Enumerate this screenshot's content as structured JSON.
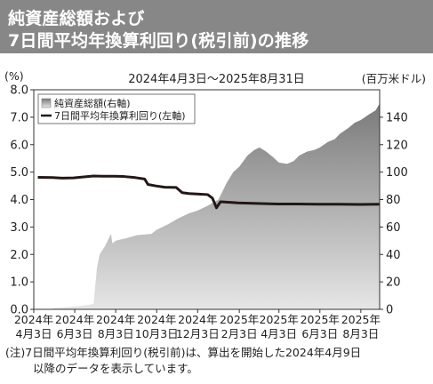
{
  "header": {
    "title_line1": "純資産総額および",
    "title_line2": "7日間平均年換算利回り(税引前)の推移"
  },
  "period_label": "2024年4月3日〜2025年8月31日",
  "left_unit": "(%)",
  "right_unit": "(百万米ドル)",
  "note": {
    "line1": "(注)7日間平均年換算利回り(税引前)は、算出を開始した2024年4月9日",
    "line2": "以降のデータを表示しています。"
  },
  "colors": {
    "title_bar": "#878787",
    "area_top": "#7a7a7a",
    "area_bottom": "#e6e6e6",
    "yield_line": "#231815"
  },
  "chart_data": {
    "type": "area",
    "x_ticks": [
      [
        "2024年",
        "4月3日"
      ],
      [
        "2024年",
        "6月3日"
      ],
      [
        "2024年",
        "8月3日"
      ],
      [
        "2024年",
        "10月3日"
      ],
      [
        "2024年",
        "12月3日"
      ],
      [
        "2025年",
        "2月3日"
      ],
      [
        "2025年",
        "4月3日"
      ],
      [
        "2025年",
        "6月3日"
      ],
      [
        "2025年",
        "8月3日"
      ]
    ],
    "y_left": {
      "ticks": [
        "0.0",
        "1.0",
        "2.0",
        "3.0",
        "4.0",
        "5.0",
        "6.0",
        "7.0",
        "8.0"
      ],
      "ylim": [
        0,
        8
      ]
    },
    "y_right": {
      "ticks": [
        "0",
        "20",
        "40",
        "60",
        "80",
        "100",
        "120",
        "140"
      ],
      "ylim": [
        0,
        160
      ]
    },
    "legend": {
      "position": "top-left",
      "items": [
        "純資産総額(右軸)",
        "7日間平均年換算利回り(左軸)"
      ]
    },
    "series": [
      {
        "name": "純資産総額(右軸)",
        "axis": "right",
        "style": "area",
        "points": [
          [
            "2024-04-03",
            0
          ],
          [
            "2024-04-30",
            0
          ],
          [
            "2024-05-03",
            1
          ],
          [
            "2024-05-20",
            1.5
          ],
          [
            "2024-06-03",
            2
          ],
          [
            "2024-06-20",
            3
          ],
          [
            "2024-07-01",
            4
          ],
          [
            "2024-07-06",
            30
          ],
          [
            "2024-07-10",
            40
          ],
          [
            "2024-07-18",
            46
          ],
          [
            "2024-07-24",
            52
          ],
          [
            "2024-07-27",
            55
          ],
          [
            "2024-07-29",
            48
          ],
          [
            "2024-08-03",
            50
          ],
          [
            "2024-08-20",
            52
          ],
          [
            "2024-09-03",
            54
          ],
          [
            "2024-09-25",
            55
          ],
          [
            "2024-10-03",
            58
          ],
          [
            "2024-10-20",
            62
          ],
          [
            "2024-11-03",
            66
          ],
          [
            "2024-11-20",
            70
          ],
          [
            "2024-12-03",
            72
          ],
          [
            "2024-12-20",
            76
          ],
          [
            "2025-01-03",
            80
          ],
          [
            "2025-01-15",
            92
          ],
          [
            "2025-01-25",
            100
          ],
          [
            "2025-02-03",
            104
          ],
          [
            "2025-02-15",
            112
          ],
          [
            "2025-02-25",
            116
          ],
          [
            "2025-03-05",
            118
          ],
          [
            "2025-03-15",
            115
          ],
          [
            "2025-03-25",
            111
          ],
          [
            "2025-04-03",
            107
          ],
          [
            "2025-04-15",
            106
          ],
          [
            "2025-04-25",
            108
          ],
          [
            "2025-05-03",
            112
          ],
          [
            "2025-05-15",
            115
          ],
          [
            "2025-05-25",
            116
          ],
          [
            "2025-06-03",
            118
          ],
          [
            "2025-06-15",
            122
          ],
          [
            "2025-06-25",
            124
          ],
          [
            "2025-07-03",
            128
          ],
          [
            "2025-07-15",
            132
          ],
          [
            "2025-07-25",
            136
          ],
          [
            "2025-08-03",
            138
          ],
          [
            "2025-08-15",
            142
          ],
          [
            "2025-08-25",
            145
          ],
          [
            "2025-08-31",
            150
          ]
        ]
      },
      {
        "name": "7日間平均年換算利回り(左軸)",
        "axis": "left",
        "style": "line",
        "points": [
          [
            "2024-04-09",
            4.81
          ],
          [
            "2024-05-01",
            4.8
          ],
          [
            "2024-05-15",
            4.78
          ],
          [
            "2024-06-01",
            4.79
          ],
          [
            "2024-06-15",
            4.82
          ],
          [
            "2024-07-01",
            4.86
          ],
          [
            "2024-07-15",
            4.85
          ],
          [
            "2024-08-01",
            4.85
          ],
          [
            "2024-08-15",
            4.84
          ],
          [
            "2024-09-01",
            4.8
          ],
          [
            "2024-09-15",
            4.75
          ],
          [
            "2024-09-20",
            4.55
          ],
          [
            "2024-10-01",
            4.5
          ],
          [
            "2024-10-15",
            4.45
          ],
          [
            "2024-11-01",
            4.44
          ],
          [
            "2024-11-10",
            4.25
          ],
          [
            "2024-11-20",
            4.22
          ],
          [
            "2024-12-05",
            4.2
          ],
          [
            "2024-12-18",
            4.18
          ],
          [
            "2024-12-25",
            4.05
          ],
          [
            "2024-12-31",
            3.7
          ],
          [
            "2025-01-06",
            3.92
          ],
          [
            "2025-01-20",
            3.9
          ],
          [
            "2025-02-01",
            3.88
          ],
          [
            "2025-03-01",
            3.86
          ],
          [
            "2025-04-01",
            3.84
          ],
          [
            "2025-05-01",
            3.84
          ],
          [
            "2025-06-01",
            3.83
          ],
          [
            "2025-07-01",
            3.83
          ],
          [
            "2025-08-01",
            3.82
          ],
          [
            "2025-08-31",
            3.83
          ]
        ]
      }
    ]
  }
}
